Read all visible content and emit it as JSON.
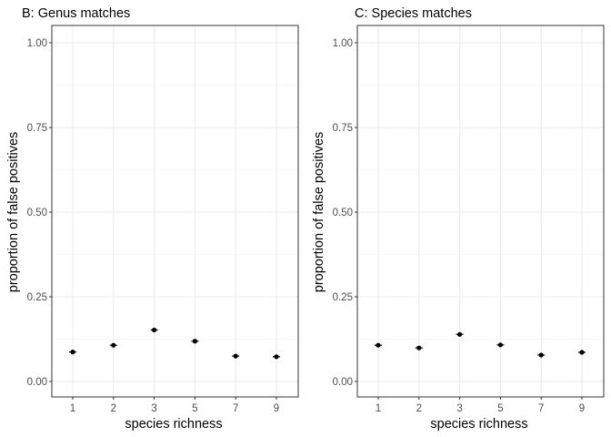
{
  "chart_data": [
    {
      "type": "scatter",
      "title": "B: Genus matches",
      "xlabel": "species richness",
      "ylabel": "proportion of false positives",
      "categories": [
        "1",
        "2",
        "3",
        "5",
        "7",
        "9"
      ],
      "values": [
        0.087,
        0.107,
        0.152,
        0.119,
        0.075,
        0.073
      ],
      "ylim": [
        0,
        1
      ],
      "yticks": [
        "0.00",
        "0.25",
        "0.50",
        "0.75",
        "1.00"
      ],
      "grid": true,
      "legend": "none"
    },
    {
      "type": "scatter",
      "title": "C: Species matches",
      "xlabel": "species richness",
      "ylabel": "proportion of false positives",
      "categories": [
        "1",
        "2",
        "3",
        "5",
        "7",
        "9"
      ],
      "values": [
        0.107,
        0.099,
        0.139,
        0.108,
        0.078,
        0.086
      ],
      "ylim": [
        0,
        1
      ],
      "yticks": [
        "0.00",
        "0.25",
        "0.50",
        "0.75",
        "1.00"
      ],
      "grid": true,
      "legend": "none"
    }
  ]
}
